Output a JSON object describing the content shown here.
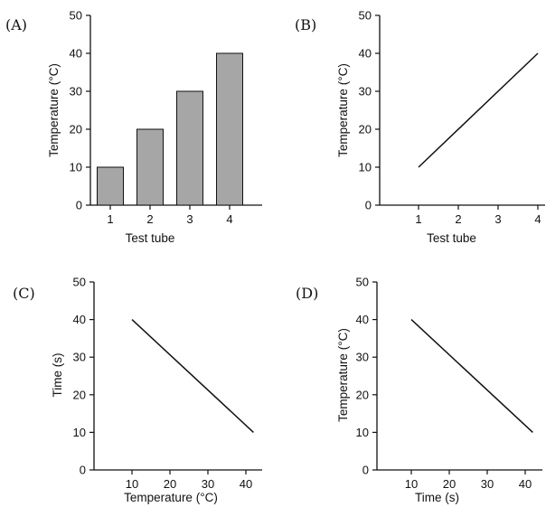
{
  "chart_data": [
    {
      "panel": "(A)",
      "type": "bar",
      "categories": [
        "1",
        "2",
        "3",
        "4"
      ],
      "values": [
        10,
        20,
        30,
        40
      ],
      "xlabel": "Test tube",
      "ylabel": "Temperature (°C)",
      "ylim": [
        0,
        50
      ],
      "yticks": [
        "0",
        "10",
        "20",
        "30",
        "40",
        "50"
      ],
      "xticks": [
        "1",
        "2",
        "3",
        "4"
      ]
    },
    {
      "panel": "(B)",
      "type": "line",
      "x": [
        1,
        4
      ],
      "y": [
        10,
        40
      ],
      "xlabel": "Test tube",
      "ylabel": "Temperature (°C)",
      "xlim": [
        0,
        4.2
      ],
      "ylim": [
        0,
        50
      ],
      "yticks": [
        "0",
        "10",
        "20",
        "30",
        "40",
        "50"
      ],
      "xticks": [
        "1",
        "2",
        "3",
        "4"
      ]
    },
    {
      "panel": "(C)",
      "type": "line",
      "x": [
        10,
        42
      ],
      "y": [
        40,
        10
      ],
      "xlabel": "Temperature (°C)",
      "ylabel": "Time (s)",
      "xlim": [
        0,
        45
      ],
      "ylim": [
        0,
        50
      ],
      "yticks": [
        "0",
        "10",
        "20",
        "30",
        "40",
        "50"
      ],
      "xticks": [
        "10",
        "20",
        "30",
        "40"
      ]
    },
    {
      "panel": "(D)",
      "type": "line",
      "x": [
        10,
        42
      ],
      "y": [
        40,
        10
      ],
      "xlabel": "Time (s)",
      "ylabel": "Temperature (°C)",
      "xlim": [
        0,
        45
      ],
      "ylim": [
        0,
        50
      ],
      "yticks": [
        "0",
        "10",
        "20",
        "30",
        "40",
        "50"
      ],
      "xticks": [
        "10",
        "20",
        "30",
        "40"
      ]
    }
  ]
}
